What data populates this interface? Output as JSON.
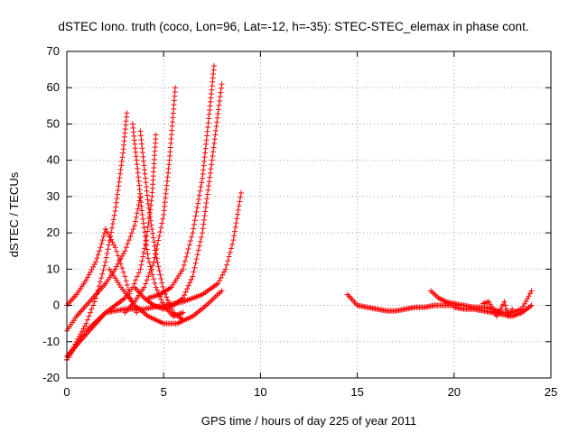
{
  "chart_data": {
    "type": "scatter",
    "title": "dSTEC Iono. truth (coco, Lon=96, Lat=-12, h=-35): STEC-STEC_elemax in phase cont.",
    "xlabel": "GPS time / hours of day 225 of year 2011",
    "ylabel": "dSTEC  / TECUs",
    "xlim": [
      0,
      25
    ],
    "ylim": [
      -20,
      70
    ],
    "xticks": [
      0,
      5,
      10,
      15,
      20,
      25
    ],
    "yticks": [
      -20,
      -10,
      0,
      10,
      20,
      30,
      40,
      50,
      60,
      70
    ],
    "grid": true,
    "marker": "plus",
    "color": "#ff0000",
    "legend": "none",
    "series": [
      {
        "x": [
          0.0,
          0.5,
          1.0,
          1.5,
          1.8,
          2.0
        ],
        "y": [
          0.0,
          3.0,
          7.0,
          12.0,
          17.0,
          21.0
        ]
      },
      {
        "x": [
          0.0,
          0.5,
          1.0,
          1.5,
          2.0,
          2.5,
          2.9,
          3.1
        ],
        "y": [
          -15.0,
          -10.0,
          -5.0,
          2.0,
          12.0,
          26.0,
          42.0,
          53.0
        ]
      },
      {
        "x": [
          0.0,
          0.5,
          1.0,
          1.5,
          2.0,
          2.5,
          3.0,
          3.5,
          3.8
        ],
        "y": [
          -7.0,
          -3.0,
          0.0,
          3.0,
          6.0,
          10.0,
          15.0,
          22.0,
          30.0
        ]
      },
      {
        "x": [
          2.0,
          2.5,
          3.0,
          3.3,
          3.6
        ],
        "y": [
          21.0,
          16.0,
          8.0,
          2.0,
          -2.0
        ]
      },
      {
        "x": [
          3.4,
          3.6,
          3.9,
          4.2,
          4.6,
          5.0,
          5.5,
          6.0
        ],
        "y": [
          50.0,
          40.0,
          25.0,
          13.0,
          5.0,
          0.0,
          -3.0,
          -2.0
        ]
      },
      {
        "x": [
          3.8,
          4.2,
          4.6,
          5.0,
          5.5,
          6.0
        ],
        "y": [
          48.0,
          28.0,
          14.0,
          4.0,
          -2.0,
          -4.0
        ]
      },
      {
        "x": [
          2.2,
          2.8,
          3.5,
          4.2,
          5.0,
          5.7,
          6.5,
          7.2,
          8.0
        ],
        "y": [
          10.0,
          5.0,
          0.0,
          -3.0,
          -5.0,
          -5.0,
          -3.0,
          0.0,
          4.0
        ]
      },
      {
        "x": [
          0.0,
          1.0,
          2.0,
          3.0,
          4.0,
          5.0,
          6.0,
          7.0,
          7.8,
          8.2,
          8.6,
          9.0
        ],
        "y": [
          -15.0,
          -7.0,
          -2.0,
          -1.0,
          -1.0,
          0.0,
          1.0,
          3.0,
          6.0,
          10.0,
          18.0,
          31.0
        ]
      },
      {
        "x": [
          4.6,
          4.4,
          4.1,
          3.8,
          3.4,
          3.0,
          2.5,
          2.0,
          1.5,
          1.0,
          0.5,
          0.0
        ],
        "y": [
          47.0,
          30.0,
          18.0,
          10.0,
          5.0,
          2.0,
          0.0,
          -2.0,
          -5.0,
          -8.0,
          -11.0,
          -14.0
        ]
      },
      {
        "x": [
          3.5,
          4.0,
          4.5,
          5.0,
          5.5,
          6.0,
          6.5,
          7.0,
          7.5,
          8.0
        ],
        "y": [
          5.0,
          2.0,
          0.0,
          -1.0,
          0.0,
          2.0,
          8.0,
          20.0,
          40.0,
          61.0
        ]
      },
      {
        "x": [
          3.0,
          3.5,
          4.0,
          4.5,
          5.0,
          5.3,
          5.6
        ],
        "y": [
          -2.0,
          1.0,
          5.0,
          12.0,
          25.0,
          40.0,
          60.0
        ]
      },
      {
        "x": [
          4.2,
          4.8,
          5.4,
          6.0,
          6.5,
          7.0,
          7.4,
          7.6
        ],
        "y": [
          2.0,
          3.0,
          5.0,
          10.0,
          20.0,
          35.0,
          55.0,
          66.0
        ]
      },
      {
        "x": [
          14.5,
          15.0,
          15.5,
          16.0,
          16.5,
          17.0,
          17.5,
          18.0,
          18.5,
          19.0,
          19.5,
          20.0
        ],
        "y": [
          3.0,
          0.0,
          -0.5,
          -1.0,
          -1.5,
          -1.5,
          -1.0,
          -0.5,
          -0.5,
          0.0,
          0.0,
          0.0
        ]
      },
      {
        "x": [
          18.8,
          19.2,
          19.6,
          20.0,
          20.5,
          21.0,
          21.5,
          22.0,
          22.5,
          23.0,
          23.5,
          24.0
        ],
        "y": [
          4.0,
          2.0,
          1.0,
          0.5,
          0.0,
          -0.5,
          -0.5,
          -1.0,
          -2.0,
          -2.0,
          -1.0,
          4.0
        ]
      },
      {
        "x": [
          20.0,
          20.5,
          21.0,
          21.5,
          22.0,
          22.5,
          23.0,
          23.5,
          24.0
        ],
        "y": [
          -0.5,
          -1.0,
          -1.0,
          -1.5,
          -2.0,
          -2.5,
          -3.0,
          -2.0,
          0.0
        ]
      },
      {
        "x": [
          21.5,
          21.8,
          22.0,
          22.2,
          22.4,
          22.6,
          22.8,
          23.0
        ],
        "y": [
          0.5,
          1.0,
          -1.0,
          -3.0,
          -1.0,
          1.0,
          -3.0,
          -1.0
        ]
      }
    ]
  }
}
